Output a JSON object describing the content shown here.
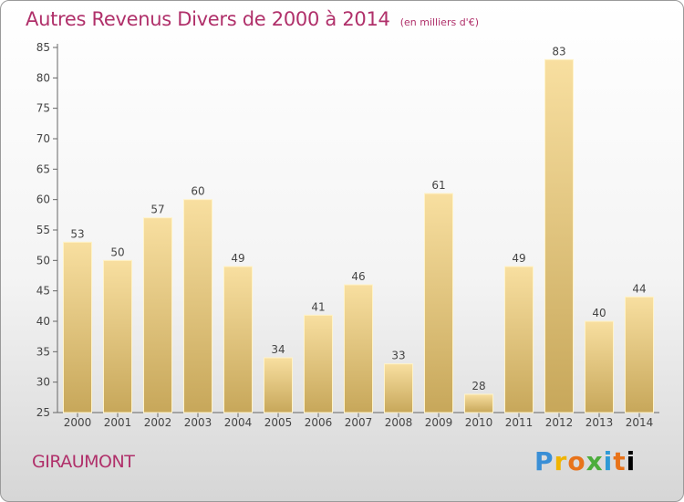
{
  "title": "Autres Revenus Divers de 2000 à 2014",
  "unit_note": "(en milliers d'€)",
  "commune": "GIRAUMONT",
  "logo_text": "Proxiti",
  "colors": {
    "title": "#b0306a",
    "bar_light": "#f6dc9a",
    "bar_dark": "#c8a95c",
    "axis": "#555555"
  },
  "chart_data": {
    "type": "bar",
    "title": "Autres Revenus Divers de 2000 à 2014",
    "xlabel": "",
    "ylabel": "",
    "categories": [
      "2000",
      "2001",
      "2002",
      "2003",
      "2004",
      "2005",
      "2006",
      "2007",
      "2008",
      "2009",
      "2010",
      "2011",
      "2012",
      "2013",
      "2014"
    ],
    "values": [
      53,
      50,
      57,
      60,
      49,
      34,
      41,
      46,
      33,
      61,
      28,
      49,
      83,
      40,
      44
    ],
    "ylim": [
      25,
      85
    ],
    "yticks": [
      25,
      30,
      35,
      40,
      45,
      50,
      55,
      60,
      65,
      70,
      75,
      80,
      85
    ],
    "grid": false,
    "legend": "none"
  }
}
